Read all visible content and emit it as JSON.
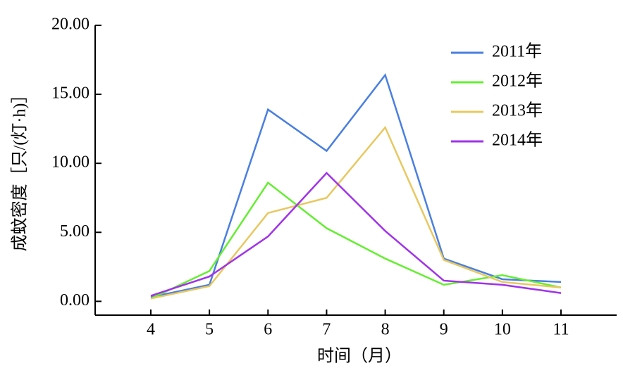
{
  "chart_data": {
    "type": "line",
    "xlabel": "时间（月）",
    "ylabel": "成蚊密度［只/(灯·h)］",
    "x": [
      4,
      5,
      6,
      7,
      8,
      9,
      10,
      11
    ],
    "series": [
      {
        "name": "2011年",
        "color": "#4a7fe0",
        "values": [
          0.3,
          1.2,
          13.9,
          10.9,
          16.4,
          3.1,
          1.6,
          1.4
        ]
      },
      {
        "name": "2012年",
        "color": "#66ee33",
        "values": [
          0.2,
          2.2,
          8.6,
          5.3,
          3.1,
          1.2,
          1.9,
          1.0
        ]
      },
      {
        "name": "2013年",
        "color": "#e8c860",
        "values": [
          0.2,
          1.1,
          6.4,
          7.5,
          12.6,
          3.0,
          1.4,
          1.0
        ]
      },
      {
        "name": "2014年",
        "color": "#a033e8",
        "values": [
          0.4,
          1.8,
          4.7,
          9.3,
          5.1,
          1.5,
          1.2,
          0.6
        ]
      }
    ],
    "xlim": [
      3.05,
      11.95
    ],
    "xticks": [
      4,
      5,
      6,
      7,
      8,
      9,
      10,
      11
    ],
    "ylim": [
      -1,
      20
    ],
    "yticks": [
      {
        "value": 0,
        "label": "0.00"
      },
      {
        "value": 5,
        "label": "5.00"
      },
      {
        "value": 10,
        "label": "10.00"
      },
      {
        "value": 15,
        "label": "15.00"
      },
      {
        "value": 20,
        "label": "20.00"
      }
    ],
    "legend": "upper right"
  }
}
